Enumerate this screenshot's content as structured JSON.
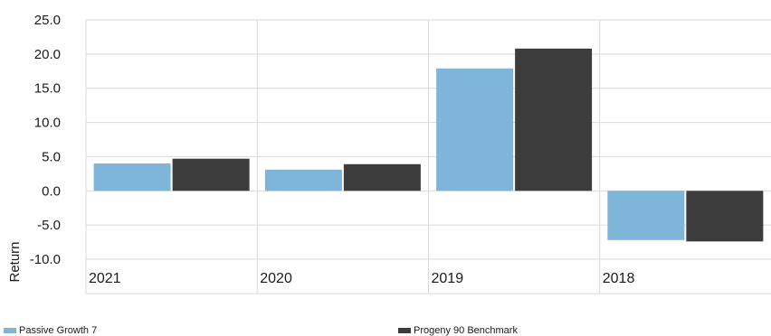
{
  "chart_data": {
    "type": "bar",
    "title": "",
    "xlabel": "",
    "ylabel": "Return",
    "categories": [
      "2021",
      "2020",
      "2019",
      "2018"
    ],
    "series": [
      {
        "name": "Passive Growth 7",
        "color": "#7fb5d9",
        "values": [
          4.0,
          3.1,
          17.9,
          -7.2
        ]
      },
      {
        "name": "Progeny 90 Benchmark",
        "color": "#3c3c3c",
        "values": [
          4.7,
          3.9,
          20.8,
          -7.4
        ]
      }
    ],
    "ylim": [
      -10,
      25
    ],
    "yticks": [
      "25.0",
      "20.0",
      "15.0",
      "10.0",
      "5.0",
      "0.0",
      "-5.0",
      "-10.0"
    ],
    "grid": true,
    "legend_position": "bottom"
  }
}
